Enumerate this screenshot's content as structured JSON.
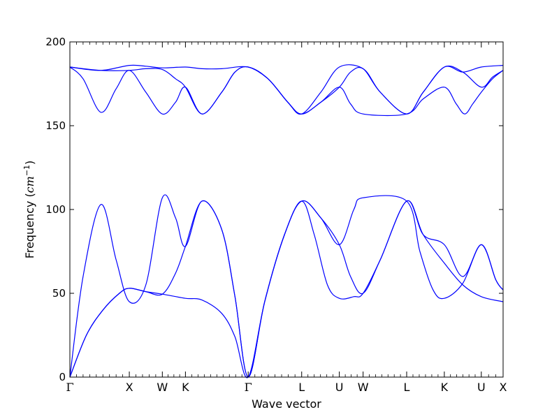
{
  "chart_data": {
    "type": "line",
    "xlabel": "Wave vector",
    "ylabel": "Frequency",
    "ylabel_unit_base": "cm",
    "ylabel_unit_exp": "−1",
    "ylim": [
      0,
      200
    ],
    "yticks": [
      0,
      50,
      100,
      150,
      200
    ],
    "xlim": [
      0,
      6.56
    ],
    "grid": false,
    "line_color": "#0000ff",
    "high_symmetry_points": [
      {
        "label": "Γ",
        "x": 0.0
      },
      {
        "label": "X",
        "x": 0.9
      },
      {
        "label": "W",
        "x": 1.4
      },
      {
        "label": "K",
        "x": 1.75
      },
      {
        "label": "Γ",
        "x": 2.7
      },
      {
        "label": "L",
        "x": 3.51
      },
      {
        "label": "U",
        "x": 4.08
      },
      {
        "label": "W",
        "x": 4.44
      },
      {
        "label": "L",
        "x": 5.1
      },
      {
        "label": "K",
        "x": 5.67
      },
      {
        "label": "U",
        "x": 6.23
      },
      {
        "label": "X",
        "x": 6.56
      }
    ],
    "series": [
      {
        "values": [
          [
            0,
            0
          ],
          [
            0.25,
            25
          ],
          [
            0.5,
            40
          ],
          [
            0.75,
            50
          ],
          [
            0.9,
            53
          ],
          [
            1.15,
            51
          ],
          [
            1.4,
            49.5
          ],
          [
            1.75,
            47
          ],
          [
            2.0,
            46
          ],
          [
            2.3,
            38
          ],
          [
            2.5,
            24
          ],
          [
            2.7,
            0
          ],
          [
            2.95,
            45
          ],
          [
            3.25,
            85
          ],
          [
            3.51,
            105
          ],
          [
            3.8,
            95
          ],
          [
            4.08,
            79
          ],
          [
            4.25,
            60
          ],
          [
            4.44,
            50
          ],
          [
            4.7,
            70
          ],
          [
            5.1,
            105
          ],
          [
            5.35,
            85
          ],
          [
            5.67,
            68
          ],
          [
            5.95,
            55
          ],
          [
            6.23,
            48
          ],
          [
            6.56,
            45
          ]
        ]
      },
      {
        "values": [
          [
            0,
            0
          ],
          [
            0.25,
            25
          ],
          [
            0.5,
            40
          ],
          [
            0.75,
            50
          ],
          [
            0.9,
            53
          ],
          [
            1.15,
            51
          ],
          [
            1.4,
            49.5
          ],
          [
            1.6,
            62
          ],
          [
            1.75,
            78
          ],
          [
            2.0,
            105
          ],
          [
            2.3,
            88
          ],
          [
            2.5,
            48
          ],
          [
            2.7,
            0
          ],
          [
            2.95,
            45
          ],
          [
            3.25,
            85
          ],
          [
            3.51,
            105
          ],
          [
            3.7,
            85
          ],
          [
            3.9,
            55
          ],
          [
            4.08,
            47
          ],
          [
            4.3,
            48
          ],
          [
            4.44,
            50
          ],
          [
            4.7,
            70
          ],
          [
            5.1,
            105
          ],
          [
            5.35,
            85
          ],
          [
            5.67,
            79
          ],
          [
            5.95,
            60
          ],
          [
            6.23,
            79
          ],
          [
            6.45,
            58
          ],
          [
            6.56,
            52
          ]
        ]
      },
      {
        "values": [
          [
            0,
            0
          ],
          [
            0.2,
            60
          ],
          [
            0.47,
            103
          ],
          [
            0.7,
            70
          ],
          [
            0.9,
            45
          ],
          [
            1.15,
            55
          ],
          [
            1.4,
            107
          ],
          [
            1.6,
            95
          ],
          [
            1.75,
            78
          ],
          [
            2.0,
            105
          ],
          [
            2.3,
            88
          ],
          [
            2.5,
            48
          ],
          [
            2.7,
            0
          ],
          [
            2.95,
            45
          ],
          [
            3.25,
            85
          ],
          [
            3.51,
            105
          ],
          [
            3.8,
            95
          ],
          [
            4.08,
            79
          ],
          [
            4.3,
            100
          ],
          [
            4.44,
            107
          ],
          [
            5.1,
            105
          ],
          [
            5.3,
            75
          ],
          [
            5.5,
            52
          ],
          [
            5.67,
            47
          ],
          [
            5.95,
            56
          ],
          [
            6.23,
            79
          ],
          [
            6.45,
            58
          ],
          [
            6.56,
            52
          ]
        ]
      },
      {
        "values": [
          [
            0,
            185
          ],
          [
            0.2,
            178
          ],
          [
            0.47,
            158
          ],
          [
            0.7,
            172
          ],
          [
            0.9,
            183
          ],
          [
            1.15,
            170
          ],
          [
            1.4,
            157
          ],
          [
            1.6,
            164
          ],
          [
            1.75,
            173
          ],
          [
            2.0,
            157
          ],
          [
            2.3,
            170
          ],
          [
            2.5,
            182
          ],
          [
            2.7,
            185
          ],
          [
            3.0,
            178
          ],
          [
            3.3,
            164
          ],
          [
            3.51,
            157
          ],
          [
            3.8,
            164
          ],
          [
            4.08,
            173
          ],
          [
            4.25,
            163
          ],
          [
            4.44,
            157
          ],
          [
            5.1,
            157
          ],
          [
            5.35,
            166
          ],
          [
            5.67,
            173
          ],
          [
            5.85,
            163
          ],
          [
            5.98,
            157
          ],
          [
            6.1,
            163
          ],
          [
            6.23,
            170
          ],
          [
            6.4,
            178
          ],
          [
            6.56,
            183
          ]
        ]
      },
      {
        "values": [
          [
            0,
            185
          ],
          [
            0.47,
            183
          ],
          [
            0.9,
            183
          ],
          [
            1.15,
            184
          ],
          [
            1.4,
            183.5
          ],
          [
            1.6,
            178
          ],
          [
            1.75,
            173
          ],
          [
            2.0,
            157
          ],
          [
            2.3,
            170
          ],
          [
            2.5,
            182
          ],
          [
            2.7,
            185
          ],
          [
            3.0,
            178
          ],
          [
            3.3,
            164
          ],
          [
            3.51,
            157
          ],
          [
            3.8,
            170
          ],
          [
            4.08,
            185
          ],
          [
            4.44,
            184
          ],
          [
            4.7,
            170
          ],
          [
            5.1,
            157
          ],
          [
            5.35,
            170
          ],
          [
            5.67,
            185
          ],
          [
            5.95,
            182
          ],
          [
            6.23,
            173
          ],
          [
            6.4,
            179
          ],
          [
            6.56,
            183
          ]
        ]
      },
      {
        "values": [
          [
            0,
            185
          ],
          [
            0.47,
            183
          ],
          [
            0.9,
            186
          ],
          [
            1.15,
            185.5
          ],
          [
            1.4,
            184.5
          ],
          [
            1.75,
            185
          ],
          [
            2.0,
            184
          ],
          [
            2.3,
            184
          ],
          [
            2.7,
            185
          ],
          [
            3.0,
            178
          ],
          [
            3.3,
            164
          ],
          [
            3.51,
            157
          ],
          [
            3.8,
            164
          ],
          [
            4.08,
            173
          ],
          [
            4.25,
            182
          ],
          [
            4.44,
            184
          ],
          [
            4.7,
            170
          ],
          [
            5.1,
            157
          ],
          [
            5.35,
            170
          ],
          [
            5.67,
            185
          ],
          [
            5.95,
            182
          ],
          [
            6.23,
            185
          ],
          [
            6.56,
            186
          ]
        ]
      }
    ]
  }
}
